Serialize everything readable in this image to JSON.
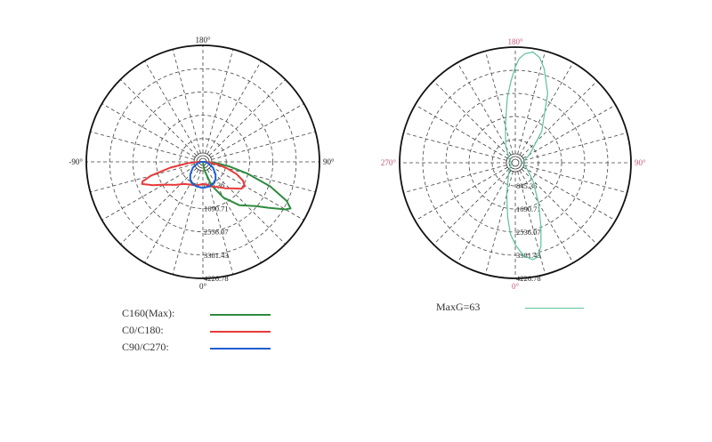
{
  "chart_data": [
    {
      "type": "polar",
      "angle_labels": {
        "top": "180°",
        "left": "-90°",
        "right": "90°",
        "bottom": "0°"
      },
      "radial_ticks": [
        "845.36",
        "1690.71",
        "2536.07",
        "3381.43",
        "4226.78"
      ],
      "rlim": [
        0,
        4226.78
      ],
      "angle_label_color": "#222222",
      "grid": true,
      "series": [
        {
          "name": "C160(Max):",
          "color": "#2e8b3e",
          "points": [
            [
              0,
              0
            ],
            [
              10,
              300
            ],
            [
              20,
              900
            ],
            [
              30,
              1500
            ],
            [
              40,
              2050
            ],
            [
              50,
              2500
            ],
            [
              55,
              2900
            ],
            [
              60,
              3450
            ],
            [
              62,
              3600
            ],
            [
              65,
              3350
            ],
            [
              70,
              2600
            ],
            [
              75,
              1700
            ],
            [
              80,
              1000
            ],
            [
              85,
              500
            ],
            [
              90,
              80
            ]
          ]
        },
        {
          "name": "C0/C180:",
          "color": "#e83a3a",
          "points": [
            [
              -90,
              150
            ],
            [
              -85,
              550
            ],
            [
              -80,
              1200
            ],
            [
              -75,
              1950
            ],
            [
              -72,
              2300
            ],
            [
              -70,
              2350
            ],
            [
              -65,
              2000
            ],
            [
              -60,
              1650
            ],
            [
              -50,
              1300
            ],
            [
              -40,
              1050
            ],
            [
              -30,
              950
            ],
            [
              -20,
              900
            ],
            [
              -10,
              850
            ],
            [
              0,
              800
            ],
            [
              10,
              850
            ],
            [
              20,
              950
            ],
            [
              30,
              1050
            ],
            [
              40,
              1250
            ],
            [
              50,
              1500
            ],
            [
              55,
              1700
            ],
            [
              60,
              1750
            ],
            [
              65,
              1600
            ],
            [
              70,
              1300
            ],
            [
              75,
              900
            ],
            [
              80,
              550
            ],
            [
              85,
              250
            ],
            [
              90,
              50
            ]
          ]
        },
        {
          "name": "C90/C270:",
          "color": "#1f5fcf",
          "points": [
            [
              -90,
              60
            ],
            [
              -75,
              200
            ],
            [
              -60,
              420
            ],
            [
              -45,
              650
            ],
            [
              -35,
              800
            ],
            [
              -25,
              880
            ],
            [
              -15,
              920
            ],
            [
              0,
              950
            ],
            [
              15,
              920
            ],
            [
              25,
              880
            ],
            [
              35,
              800
            ],
            [
              45,
              650
            ],
            [
              60,
              420
            ],
            [
              75,
              200
            ],
            [
              90,
              60
            ]
          ]
        }
      ]
    },
    {
      "type": "polar",
      "angle_labels": {
        "top": "180°",
        "left": "270°",
        "right": "90°",
        "bottom": "0°"
      },
      "radial_ticks": [
        "845.36",
        "1690.71",
        "2536.07",
        "3381.43",
        "4226.78"
      ],
      "rlim": [
        0,
        4226.78
      ],
      "angle_label_color": "#c4587d",
      "grid": true,
      "series": [
        {
          "name": "MaxG=63",
          "color": "#5cc29a",
          "points": [
            [
              0,
              3000
            ],
            [
              5,
              3400
            ],
            [
              10,
              3600
            ],
            [
              13,
              3550
            ],
            [
              17,
              3200
            ],
            [
              22,
              2500
            ],
            [
              30,
              1700
            ],
            [
              45,
              900
            ],
            [
              70,
              400
            ],
            [
              90,
              250
            ],
            [
              120,
              600
            ],
            [
              140,
              1500
            ],
            [
              155,
              2800
            ],
            [
              163,
              3600
            ],
            [
              167,
              3950
            ],
            [
              171,
              4100
            ],
            [
              175,
              4000
            ],
            [
              178,
              3800
            ],
            [
              180,
              3500
            ],
            [
              183,
              3000
            ],
            [
              187,
              2400
            ],
            [
              195,
              1400
            ],
            [
              210,
              700
            ],
            [
              240,
              250
            ],
            [
              270,
              150
            ],
            [
              300,
              200
            ],
            [
              330,
              500
            ],
            [
              345,
              1200
            ],
            [
              352,
              2000
            ],
            [
              356,
              2600
            ],
            [
              360,
              3000
            ]
          ]
        }
      ]
    }
  ],
  "legend": [
    {
      "label": "C160(Max):",
      "color": "#2e8b3e"
    },
    {
      "label": "C0/C180:",
      "color": "#e83a3a"
    },
    {
      "label": "C90/C270:",
      "color": "#1f5fcf"
    }
  ],
  "legend2": [
    {
      "label": "MaxG=63",
      "color": "#5cc29a"
    }
  ]
}
